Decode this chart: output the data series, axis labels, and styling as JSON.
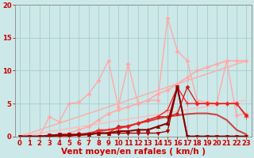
{
  "background_color": "#cce8e8",
  "grid_color": "#aacccc",
  "xlabel": "Vent moyen/en rafales ( km/h )",
  "xlim": [
    -0.5,
    23.5
  ],
  "ylim": [
    0,
    20
  ],
  "xticks": [
    0,
    1,
    2,
    3,
    4,
    5,
    6,
    7,
    8,
    9,
    10,
    11,
    12,
    13,
    14,
    15,
    16,
    17,
    18,
    19,
    20,
    21,
    22,
    23
  ],
  "yticks": [
    0,
    5,
    10,
    15,
    20
  ],
  "label_color": "#cc0000",
  "lines": [
    {
      "x": [
        0,
        23
      ],
      "y": [
        0,
        11.5
      ],
      "color": "#ffaaaa",
      "lw": 1.0,
      "marker": null
    },
    {
      "x": [
        0,
        23
      ],
      "y": [
        0,
        5.5
      ],
      "color": "#ffbbbb",
      "lw": 1.0,
      "marker": null
    },
    {
      "x": [
        2,
        3,
        4,
        5,
        6,
        7,
        8,
        9,
        10,
        11,
        12,
        13,
        14,
        15,
        16,
        17,
        18,
        19,
        20,
        21,
        22,
        23
      ],
      "y": [
        0,
        3.0,
        2.2,
        5.0,
        5.2,
        6.5,
        8.5,
        11.5,
        4.5,
        11.0,
        5.0,
        5.5,
        5.5,
        18.0,
        13.0,
        11.5,
        5.5,
        5.2,
        5.0,
        11.5,
        3.2,
        3.5
      ],
      "color": "#ffaaaa",
      "lw": 1.0,
      "marker": "D",
      "markersize": 2.5
    },
    {
      "x": [
        2,
        3,
        4,
        5,
        6,
        7,
        8,
        9,
        10,
        11,
        12,
        13,
        14,
        15,
        16,
        17,
        18,
        19,
        20,
        21,
        22,
        23
      ],
      "y": [
        0,
        0,
        0.3,
        0.5,
        1.0,
        1.5,
        2.5,
        3.5,
        4.0,
        4.5,
        5.0,
        5.5,
        6.5,
        7.0,
        8.0,
        9.0,
        10.0,
        10.5,
        11.0,
        11.5,
        11.5,
        11.5
      ],
      "color": "#ffaaaa",
      "lw": 1.2,
      "marker": "D",
      "markersize": 2.5
    },
    {
      "x": [
        0,
        1,
        2,
        3,
        4,
        5,
        6,
        7,
        8,
        9,
        10,
        11,
        12,
        13,
        14,
        15,
        16,
        17,
        18,
        19,
        20,
        21,
        22,
        23
      ],
      "y": [
        0,
        0,
        0,
        0,
        0.1,
        0.2,
        0.3,
        0.5,
        0.8,
        1.0,
        1.3,
        1.6,
        2.0,
        2.3,
        2.7,
        3.0,
        3.2,
        3.4,
        3.5,
        3.5,
        3.3,
        2.5,
        1.0,
        0.3
      ],
      "color": "#cc4444",
      "lw": 1.5,
      "marker": null
    },
    {
      "x": [
        3,
        4,
        5,
        6,
        7,
        8,
        9,
        10,
        11,
        12,
        13,
        14,
        15,
        16,
        17,
        18,
        19,
        20,
        21,
        22,
        23
      ],
      "y": [
        0,
        0,
        0.2,
        0.4,
        0.3,
        0.5,
        0.5,
        1.5,
        1.5,
        2.0,
        2.5,
        3.0,
        3.0,
        3.5,
        7.5,
        5.0,
        5.0,
        5.0,
        5.0,
        5.0,
        3.2
      ],
      "color": "#cc2222",
      "lw": 1.0,
      "marker": "D",
      "markersize": 2.5
    },
    {
      "x": [
        3,
        4,
        5,
        6,
        7,
        8,
        9,
        10,
        11,
        12,
        13,
        14,
        15,
        16,
        17,
        18,
        19,
        20,
        21,
        22,
        23
      ],
      "y": [
        0,
        0,
        0,
        0.2,
        0.3,
        1.0,
        1.0,
        1.2,
        1.5,
        2.0,
        2.5,
        3.0,
        4.0,
        7.5,
        5.0,
        5.0,
        5.0,
        5.0,
        5.0,
        5.0,
        3.0
      ],
      "color": "#ff2222",
      "lw": 1.0,
      "marker": "+",
      "markersize": 4
    },
    {
      "x": [
        0,
        1,
        2,
        3,
        4,
        5,
        6,
        7,
        8,
        9,
        10,
        11,
        12,
        13,
        14,
        15,
        16,
        17,
        18,
        19,
        20,
        21,
        22,
        23
      ],
      "y": [
        0,
        0,
        0,
        0.2,
        0.3,
        0.3,
        0.3,
        0.3,
        0.5,
        0.5,
        0.5,
        0.5,
        0.5,
        0.5,
        0.5,
        0.8,
        7.5,
        0,
        0,
        0,
        0,
        0,
        0,
        0
      ],
      "color": "#aa0000",
      "lw": 1.0,
      "marker": "v",
      "markersize": 3
    },
    {
      "x": [
        0,
        1,
        2,
        3,
        4,
        5,
        6,
        7,
        8,
        9,
        10,
        11,
        12,
        13,
        14,
        15,
        16,
        17,
        18,
        19,
        20,
        21,
        22,
        23
      ],
      "y": [
        0,
        0,
        0,
        0,
        0.2,
        0.2,
        0.2,
        0.3,
        0.5,
        0.5,
        0.8,
        0.8,
        1.0,
        1.0,
        1.5,
        2.0,
        7.5,
        0,
        0,
        0,
        0,
        0,
        0,
        0
      ],
      "color": "#880000",
      "lw": 1.5,
      "marker": "^",
      "markersize": 3
    }
  ],
  "tick_fontsize": 6,
  "xlabel_fontsize": 7.5,
  "tick_color": "#cc0000",
  "axis_color": "#888888"
}
